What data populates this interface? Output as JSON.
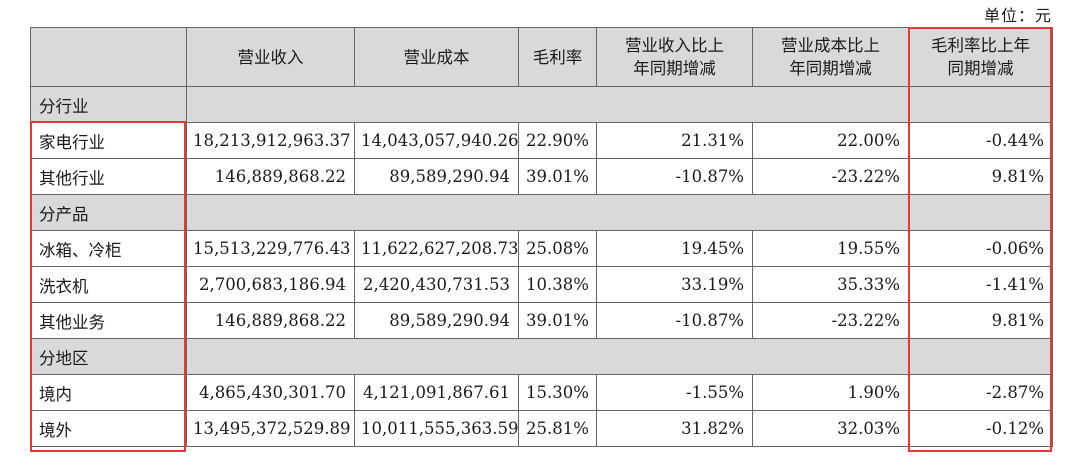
{
  "unit_label": "单位：元",
  "headers": [
    "",
    "营业收入",
    "营业成本",
    "毛利率",
    "营业收入比上\n年同期增减",
    "营业成本比上\n年同期增减",
    "毛利率比上年\n同期增减"
  ],
  "sections": [
    {
      "title": "分行业",
      "rows": [
        {
          "name": "家电行业",
          "revenue": "18,213,912,963.37",
          "cost": "14,043,057,940.26",
          "margin": "22.90%",
          "rev_change": "21.31%",
          "cost_change": "22.00%",
          "margin_change": "-0.44%"
        },
        {
          "name": "其他行业",
          "revenue": "146,889,868.22",
          "cost": "89,589,290.94",
          "margin": "39.01%",
          "rev_change": "-10.87%",
          "cost_change": "-23.22%",
          "margin_change": "9.81%"
        }
      ]
    },
    {
      "title": "分产品",
      "rows": [
        {
          "name": "冰箱、冷柜",
          "revenue": "15,513,229,776.43",
          "cost": "11,622,627,208.73",
          "margin": "25.08%",
          "rev_change": "19.45%",
          "cost_change": "19.55%",
          "margin_change": "-0.06%"
        },
        {
          "name": "洗衣机",
          "revenue": "2,700,683,186.94",
          "cost": "2,420,430,731.53",
          "margin": "10.38%",
          "rev_change": "33.19%",
          "cost_change": "35.33%",
          "margin_change": "-1.41%"
        },
        {
          "name": "其他业务",
          "revenue": "146,889,868.22",
          "cost": "89,589,290.94",
          "margin": "39.01%",
          "rev_change": "-10.87%",
          "cost_change": "-23.22%",
          "margin_change": "9.81%"
        }
      ]
    },
    {
      "title": "分地区",
      "rows": [
        {
          "name": "境内",
          "revenue": "4,865,430,301.70",
          "cost": "4,121,091,867.61",
          "margin": "15.30%",
          "rev_change": "-1.55%",
          "cost_change": "1.90%",
          "margin_change": "-2.87%"
        },
        {
          "name": "境外",
          "revenue": "13,495,372,529.89",
          "cost": "10,011,555,363.59",
          "margin": "25.81%",
          "rev_change": "31.82%",
          "cost_change": "32.03%",
          "margin_change": "-0.12%"
        }
      ]
    }
  ],
  "highlight_color": "#e53935"
}
